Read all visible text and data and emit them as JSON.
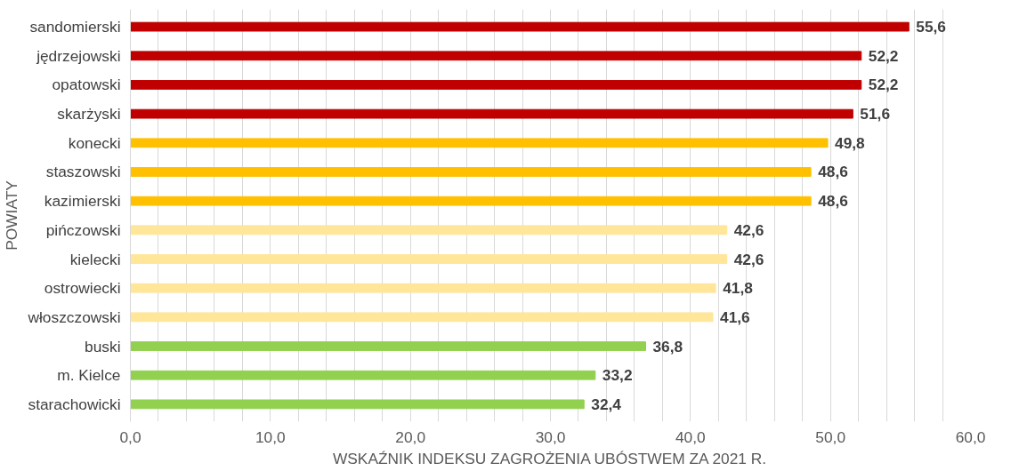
{
  "chart_data": {
    "type": "bar",
    "orientation": "horizontal",
    "xlabel": "WSKAŹNIK INDEKSU ZAGROŻENIA UBÓSTWEM ZA 2021 R.",
    "ylabel": "POWIATY",
    "categories": [
      "sandomierski",
      "jędrzejowski",
      "opatowski",
      "skarżyski",
      "konecki",
      "staszowski",
      "kazimierski",
      "pińczowski",
      "kielecki",
      "ostrowiecki",
      "włoszczowski",
      "buski",
      "m. Kielce",
      "starachowicki"
    ],
    "values": [
      55.6,
      52.2,
      52.2,
      51.6,
      49.8,
      48.6,
      48.6,
      42.6,
      42.6,
      41.8,
      41.6,
      36.8,
      33.2,
      32.4
    ],
    "value_labels": [
      "55,6",
      "52,2",
      "52,2",
      "51,6",
      "49,8",
      "48,6",
      "48,6",
      "42,6",
      "42,6",
      "41,8",
      "41,6",
      "36,8",
      "33,2",
      "32,4"
    ],
    "colors": [
      "#c00000",
      "#c00000",
      "#c00000",
      "#c00000",
      "#ffc000",
      "#ffc000",
      "#ffc000",
      "#ffe699",
      "#ffe699",
      "#ffe699",
      "#ffe699",
      "#92d050",
      "#92d050",
      "#92d050"
    ],
    "xlim": [
      0,
      60
    ],
    "xticks": [
      {
        "value": 0,
        "label": "0,0"
      },
      {
        "value": 2,
        "label": null
      },
      {
        "value": 4,
        "label": null
      },
      {
        "value": 6,
        "label": null
      },
      {
        "value": 8,
        "label": null
      },
      {
        "value": 10,
        "label": "10,0"
      },
      {
        "value": 12,
        "label": null
      },
      {
        "value": 14,
        "label": null
      },
      {
        "value": 16,
        "label": null
      },
      {
        "value": 18,
        "label": null
      },
      {
        "value": 20,
        "label": "20,0"
      },
      {
        "value": 22,
        "label": null
      },
      {
        "value": 24,
        "label": null
      },
      {
        "value": 26,
        "label": null
      },
      {
        "value": 28,
        "label": null
      },
      {
        "value": 30,
        "label": "30,0"
      },
      {
        "value": 32,
        "label": null
      },
      {
        "value": 34,
        "label": null
      },
      {
        "value": 36,
        "label": null
      },
      {
        "value": 38,
        "label": null
      },
      {
        "value": 40,
        "label": "40,0"
      },
      {
        "value": 42,
        "label": null
      },
      {
        "value": 44,
        "label": null
      },
      {
        "value": 46,
        "label": null
      },
      {
        "value": 48,
        "label": null
      },
      {
        "value": 50,
        "label": "50,0"
      },
      {
        "value": 52,
        "label": null
      },
      {
        "value": 54,
        "label": null
      },
      {
        "value": 56,
        "label": null
      },
      {
        "value": 58,
        "label": null
      },
      {
        "value": 60,
        "label": "60,0"
      }
    ],
    "grid": "x"
  }
}
